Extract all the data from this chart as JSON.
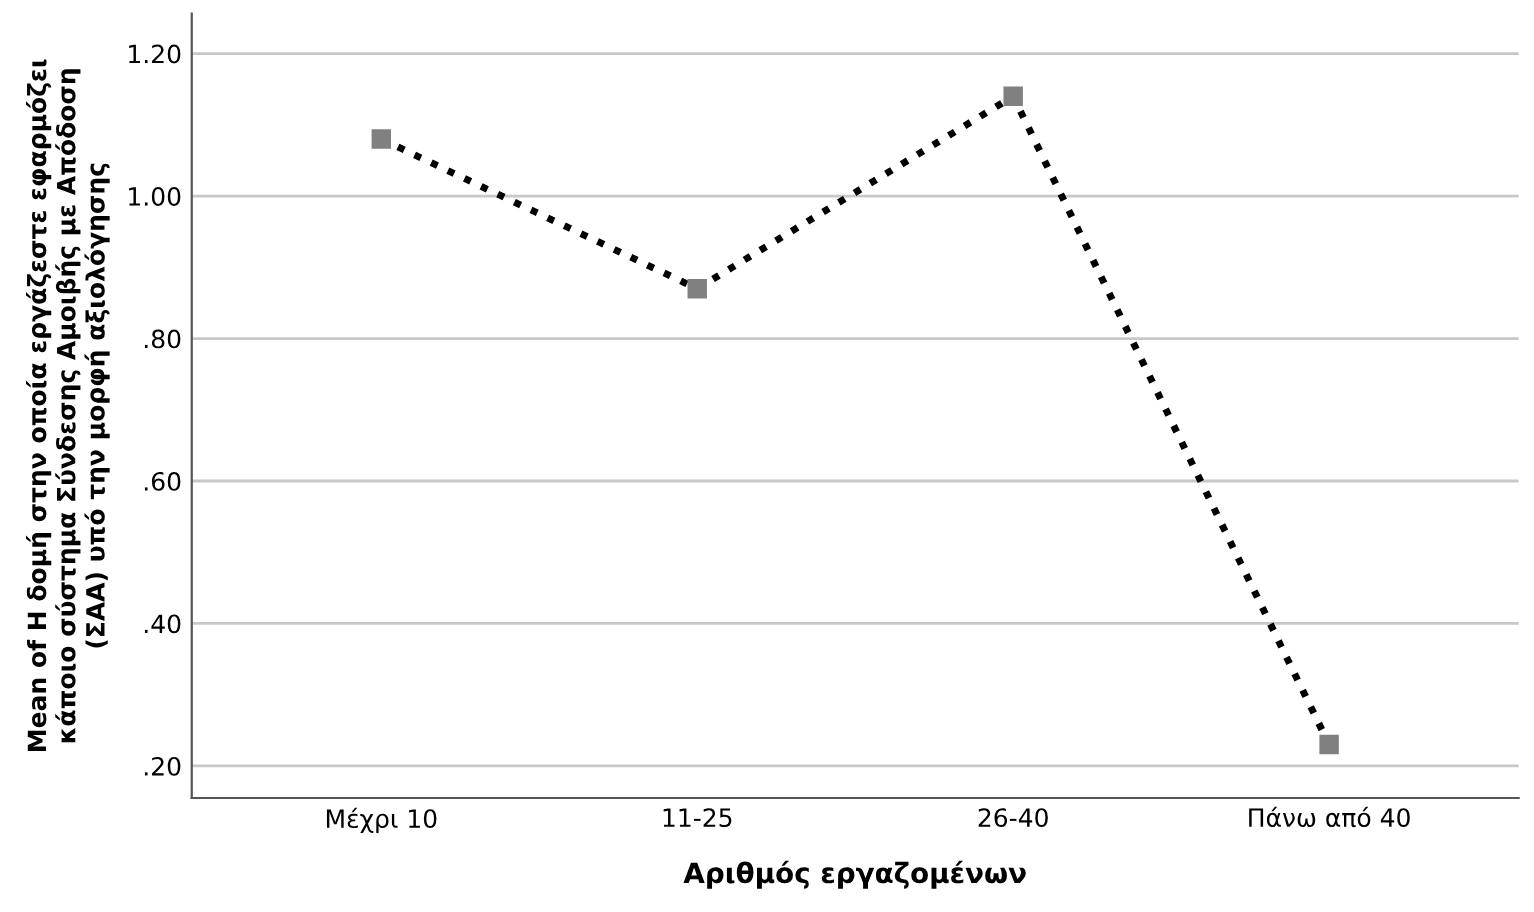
{
  "chart_data": {
    "type": "line",
    "xlabel": "Αριθμός εργαζομένων",
    "ylabel": "Mean of Η δομή στην οποία εργάζεστε εφαρμόζει\nκάποιο σύστημα Σύνδεσης Αμοιβής με Απόδοση\n(ΣΑΑ) υπό την μορφή αξιολόγησης",
    "categories": [
      "Μέχρι 10",
      "11-25",
      "26-40",
      "Πάνω από 40"
    ],
    "series": [
      {
        "color": "#000000",
        "values": [
          1.08,
          0.87,
          1.14,
          0.23
        ]
      }
    ],
    "ylim": [
      0.155,
      1.256
    ],
    "yticks": [
      {
        "value": 0.2,
        "label": ".20"
      },
      {
        "value": 0.4,
        "label": ".40"
      },
      {
        "value": 0.6,
        "label": ".60"
      },
      {
        "value": 0.8,
        "label": ".80"
      },
      {
        "value": 1.0,
        "label": "1.00"
      },
      {
        "value": 1.2,
        "label": "1.20"
      }
    ],
    "grid": "y",
    "marker": "square",
    "line_style": "dotted"
  }
}
